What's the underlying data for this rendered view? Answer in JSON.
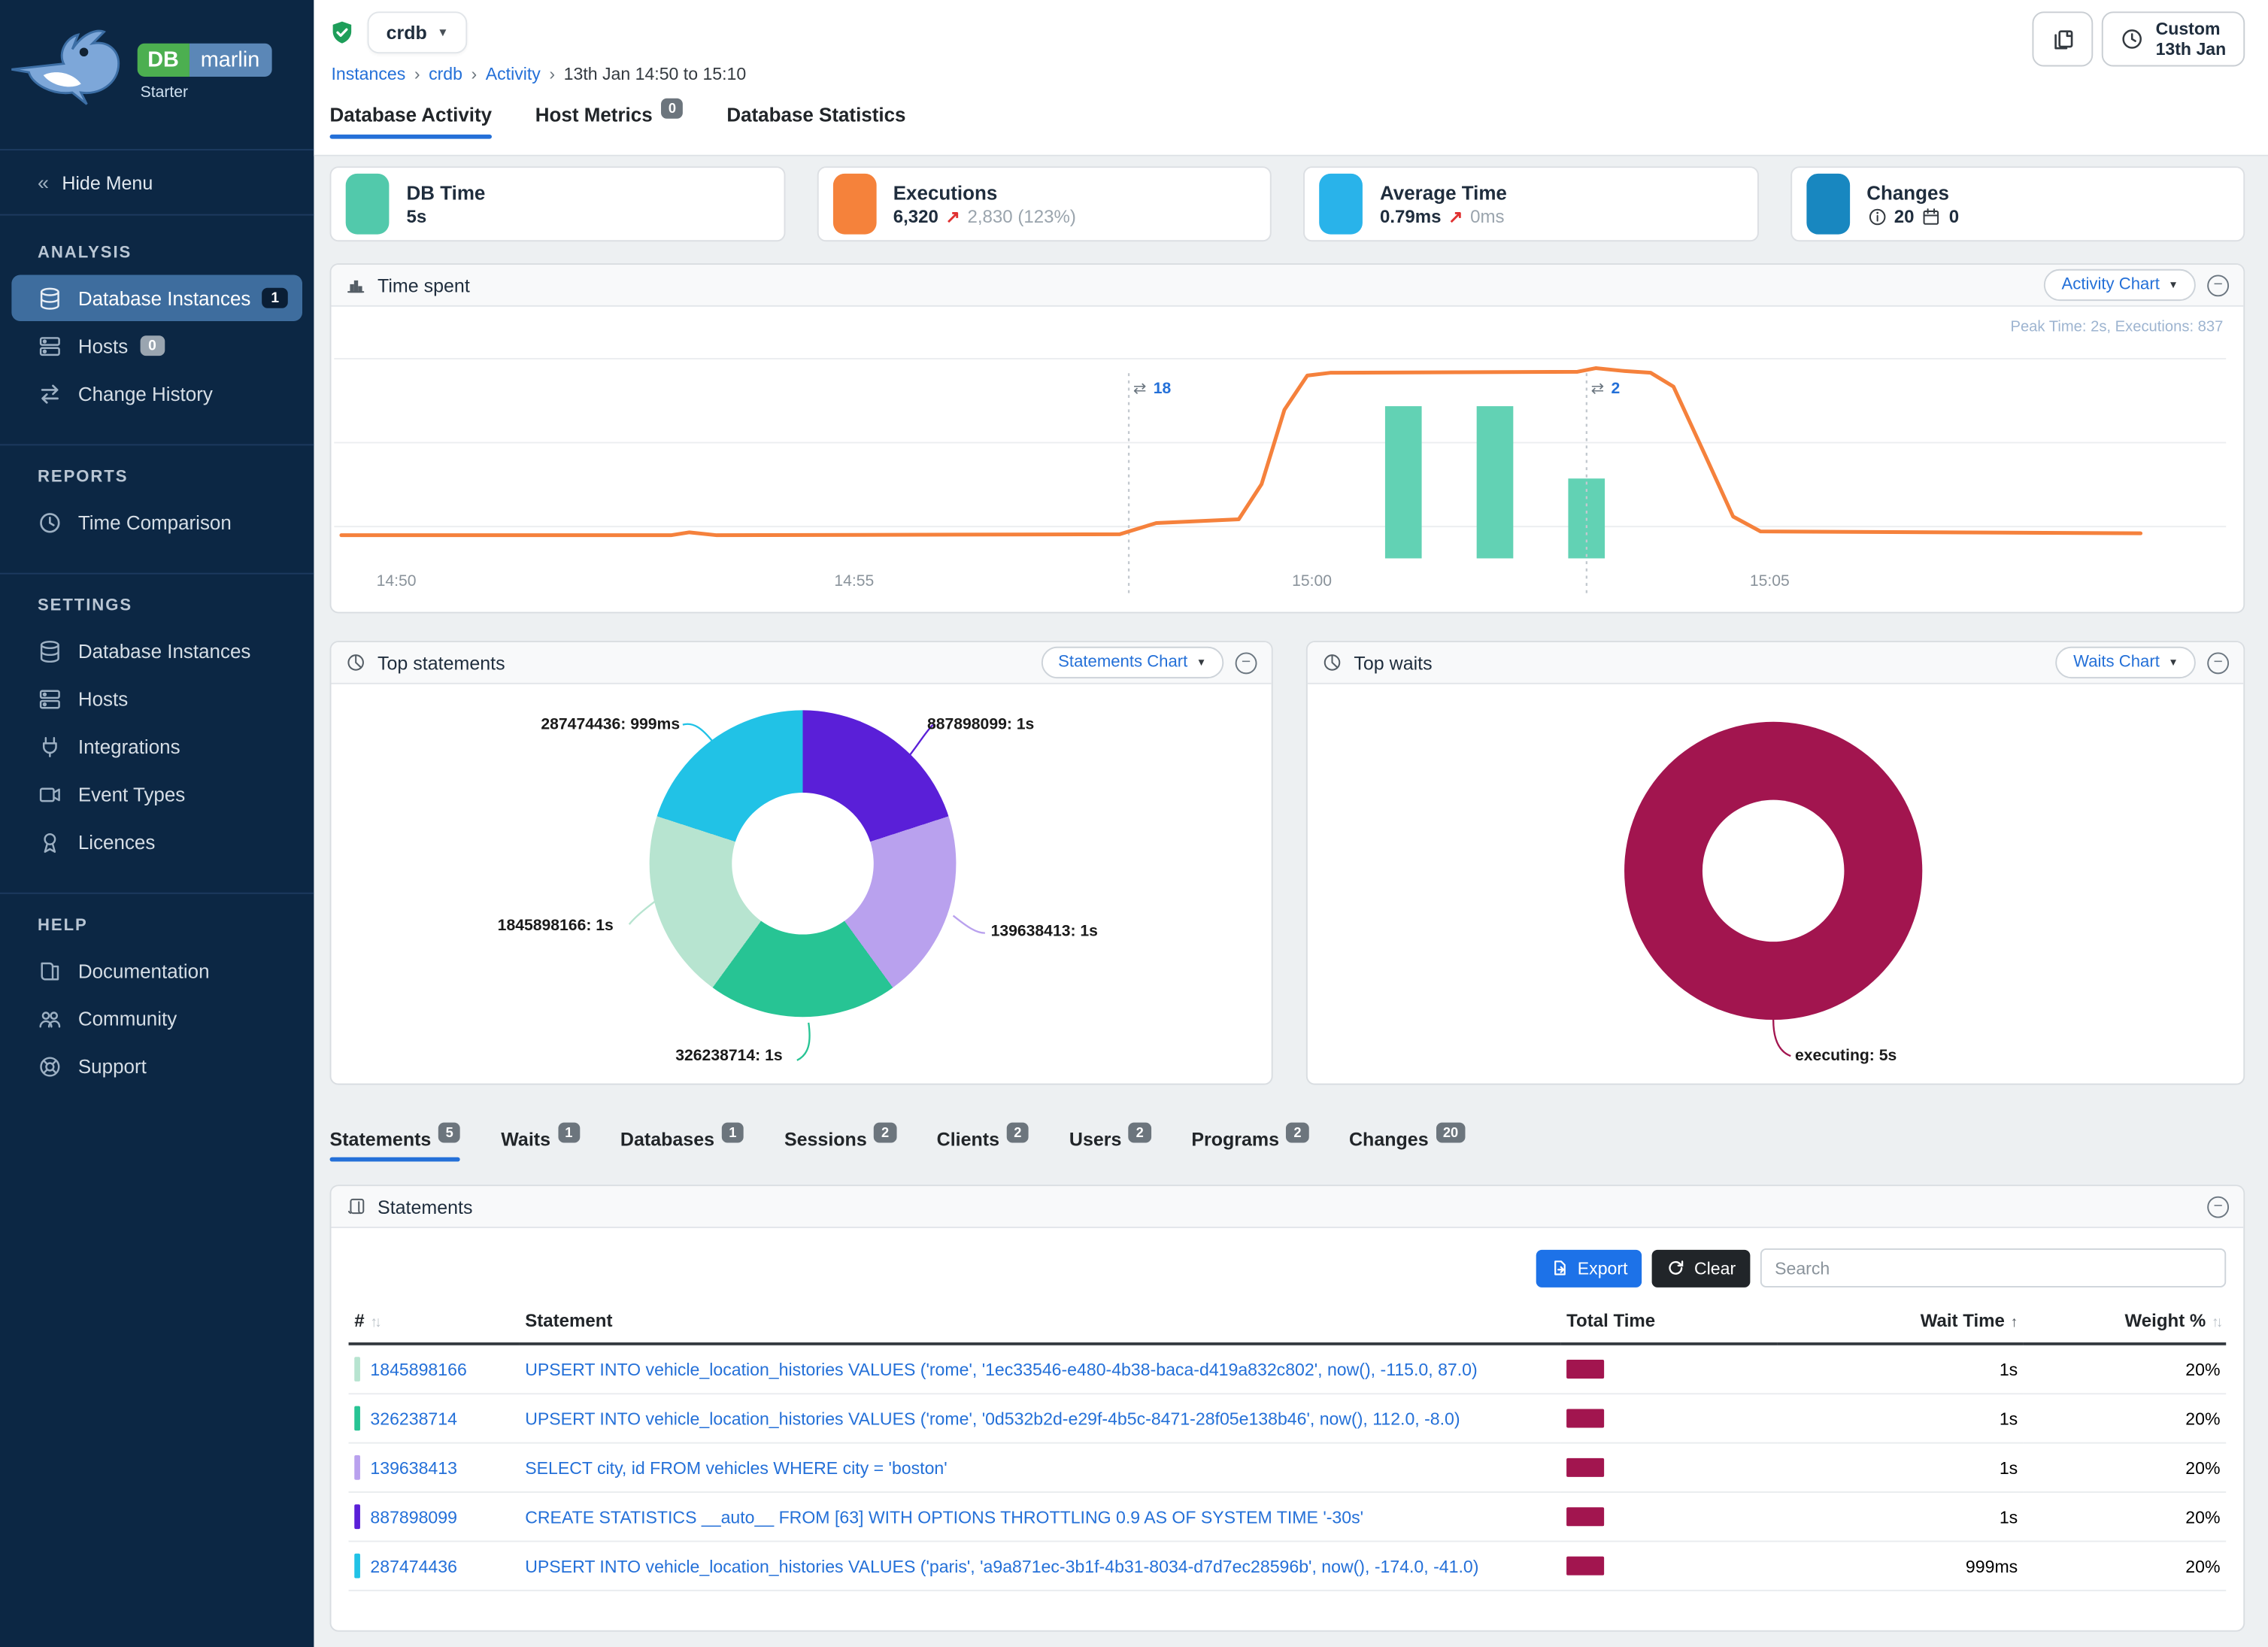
{
  "brand": {
    "name_db": "DB",
    "name_marlin": "marlin",
    "edition": "Starter"
  },
  "sidebar": {
    "hide_menu": "Hide Menu",
    "sections": [
      {
        "title": "ANALYSIS",
        "items": [
          {
            "label": "Database Instances",
            "icon": "database-icon",
            "badge": "1",
            "badge_style": "dark",
            "active": true
          },
          {
            "label": "Hosts",
            "icon": "server-icon",
            "badge": "0",
            "badge_style": "gray"
          },
          {
            "label": "Change History",
            "icon": "swap-icon"
          }
        ]
      },
      {
        "title": "REPORTS",
        "items": [
          {
            "label": "Time Comparison",
            "icon": "clock-icon"
          }
        ]
      },
      {
        "title": "SETTINGS",
        "items": [
          {
            "label": "Database Instances",
            "icon": "database-icon"
          },
          {
            "label": "Hosts",
            "icon": "server-icon"
          },
          {
            "label": "Integrations",
            "icon": "plug-icon"
          },
          {
            "label": "Event Types",
            "icon": "event-types-icon"
          },
          {
            "label": "Licences",
            "icon": "licence-icon"
          }
        ]
      },
      {
        "title": "HELP",
        "items": [
          {
            "label": "Documentation",
            "icon": "documentation-icon"
          },
          {
            "label": "Community",
            "icon": "community-icon"
          },
          {
            "label": "Support",
            "icon": "support-icon"
          }
        ]
      }
    ]
  },
  "topbar": {
    "instance_name": "crdb",
    "breadcrumb": [
      {
        "label": "Instances",
        "link": true
      },
      {
        "label": "crdb",
        "link": true
      },
      {
        "label": "Activity",
        "link": true
      },
      {
        "label": "13th Jan 14:50 to 15:10",
        "link": false
      }
    ],
    "time_range_button": {
      "line1": "Custom",
      "line2": "13th Jan"
    }
  },
  "main_tabs": [
    {
      "label": "Database Activity",
      "active": true
    },
    {
      "label": "Host Metrics",
      "badge": "0"
    },
    {
      "label": "Database Statistics"
    }
  ],
  "kpis": [
    {
      "title": "DB Time",
      "value": "5s",
      "icon": "bar-chart-icon",
      "tile_color": "#52c9ab"
    },
    {
      "title": "Executions",
      "value": "6,320",
      "arrow": "up",
      "delta": "2,830 (123%)",
      "icon": "line-chart-icon",
      "tile_color": "#f5823b"
    },
    {
      "title": "Average Time",
      "value": "0.79ms",
      "arrow": "up",
      "delta": "0ms",
      "icon": "clock-icon",
      "tile_color": "#29b3ea"
    },
    {
      "title": "Changes",
      "icon": "swap-icon",
      "tile_color": "#1887c0",
      "info_value": "20",
      "calendar_value": "0"
    }
  ],
  "panels": {
    "time_spent": {
      "title": "Time spent",
      "chart_selector": "Activity Chart"
    },
    "top_statements": {
      "title": "Top statements",
      "chart_selector": "Statements Chart"
    },
    "top_waits": {
      "title": "Top waits",
      "chart_selector": "Waits Chart"
    }
  },
  "chart_data": [
    {
      "id": "time_spent",
      "type": "line",
      "title": "Time spent",
      "x_ticks": [
        {
          "min": 0,
          "label": "14:50"
        },
        {
          "min": 5,
          "label": "14:55"
        },
        {
          "min": 10,
          "label": "15:00"
        },
        {
          "min": 15,
          "label": "15:05"
        }
      ],
      "y_unit": "seconds",
      "y_plot_max": 2.4,
      "line": {
        "name": "DB Time",
        "color": "#f5813c",
        "points": [
          [
            -0.6,
            0.25
          ],
          [
            3.0,
            0.25
          ],
          [
            3.2,
            0.28
          ],
          [
            3.5,
            0.25
          ],
          [
            7.9,
            0.26
          ],
          [
            8.3,
            0.38
          ],
          [
            9.2,
            0.42
          ],
          [
            9.45,
            0.8
          ],
          [
            9.7,
            1.6
          ],
          [
            9.95,
            1.97
          ],
          [
            10.2,
            2.0
          ],
          [
            12.9,
            2.01
          ],
          [
            13.1,
            2.05
          ],
          [
            13.4,
            2.02
          ],
          [
            13.7,
            2.0
          ],
          [
            13.95,
            1.85
          ],
          [
            14.3,
            1.1
          ],
          [
            14.6,
            0.45
          ],
          [
            14.9,
            0.29
          ],
          [
            19.05,
            0.27
          ]
        ]
      },
      "bars": {
        "name": "Executions",
        "color": "#62d2b4",
        "width_min": 0.4,
        "items": [
          {
            "x": 11.0,
            "y": 1.64
          },
          {
            "x": 12.0,
            "y": 1.64
          },
          {
            "x": 13.0,
            "y": 0.86
          }
        ]
      },
      "annotations": [
        {
          "x": 8.0,
          "label": "18"
        },
        {
          "x": 13.0,
          "label": "2"
        }
      ],
      "peak_note": "Peak Time: 2s, Executions: 837"
    },
    {
      "id": "top_statements",
      "type": "pie",
      "donut": true,
      "title": "Top statements",
      "segments": [
        {
          "id": "887898099",
          "value": "1s",
          "color": "#5a1fd8"
        },
        {
          "id": "139638413",
          "value": "1s",
          "color": "#b9a1ee"
        },
        {
          "id": "326238714",
          "value": "1s",
          "color": "#27c494"
        },
        {
          "id": "1845898166",
          "value": "1s",
          "color": "#b7e4d0"
        },
        {
          "id": "287474436",
          "value": "999ms",
          "color": "#21c2e6"
        }
      ]
    },
    {
      "id": "top_waits",
      "type": "pie",
      "donut": true,
      "title": "Top waits",
      "segments": [
        {
          "id": "executing",
          "value": "5s",
          "color": "#a2154f"
        }
      ]
    }
  ],
  "detail_tabs": [
    {
      "label": "Statements",
      "badge": "5",
      "active": true
    },
    {
      "label": "Waits",
      "badge": "1"
    },
    {
      "label": "Databases",
      "badge": "1"
    },
    {
      "label": "Sessions",
      "badge": "2"
    },
    {
      "label": "Clients",
      "badge": "2"
    },
    {
      "label": "Users",
      "badge": "2"
    },
    {
      "label": "Programs",
      "badge": "2"
    },
    {
      "label": "Changes",
      "badge": "20"
    }
  ],
  "statements_table": {
    "panel_title": "Statements",
    "export_label": "Export",
    "clear_label": "Clear",
    "search_placeholder": "Search",
    "columns": [
      "#",
      "Statement",
      "Total Time",
      "Wait Time",
      "Weight %"
    ],
    "total_time_bar_color": "#a2154f",
    "rows": [
      {
        "id": "1845898166",
        "color": "#b7e4d0",
        "statement": "UPSERT INTO vehicle_location_histories VALUES ('rome', '1ec33546-e480-4b38-baca-d419a832c802', now(), -115.0, 87.0)",
        "total_time_frac": 0.2,
        "wait_time": "1s",
        "weight": "20%"
      },
      {
        "id": "326238714",
        "color": "#27c494",
        "statement": "UPSERT INTO vehicle_location_histories VALUES ('rome', '0d532b2d-e29f-4b5c-8471-28f05e138b46', now(), 112.0, -8.0)",
        "total_time_frac": 0.2,
        "wait_time": "1s",
        "weight": "20%"
      },
      {
        "id": "139638413",
        "color": "#b9a1ee",
        "statement": "SELECT city, id FROM vehicles WHERE city = 'boston'",
        "total_time_frac": 0.2,
        "wait_time": "1s",
        "weight": "20%"
      },
      {
        "id": "887898099",
        "color": "#5a1fd8",
        "statement": "CREATE STATISTICS __auto__ FROM [63] WITH OPTIONS THROTTLING 0.9 AS OF SYSTEM TIME '-30s'",
        "total_time_frac": 0.2,
        "wait_time": "1s",
        "weight": "20%"
      },
      {
        "id": "287474436",
        "color": "#21c2e6",
        "statement": "UPSERT INTO vehicle_location_histories VALUES ('paris', 'a9a871ec-3b1f-4b31-8034-d7d7ec28596b', now(), -174.0, -41.0)",
        "total_time_frac": 0.2,
        "wait_time": "999ms",
        "weight": "20%"
      }
    ]
  },
  "colors": {
    "accent_blue": "#2470d8",
    "sidebar_bg": "#0c2744",
    "active_item_bg": "#3e6d9e",
    "line_orange": "#f5813c",
    "bars_teal": "#62d2b4",
    "wait_maroon": "#a2154f"
  }
}
